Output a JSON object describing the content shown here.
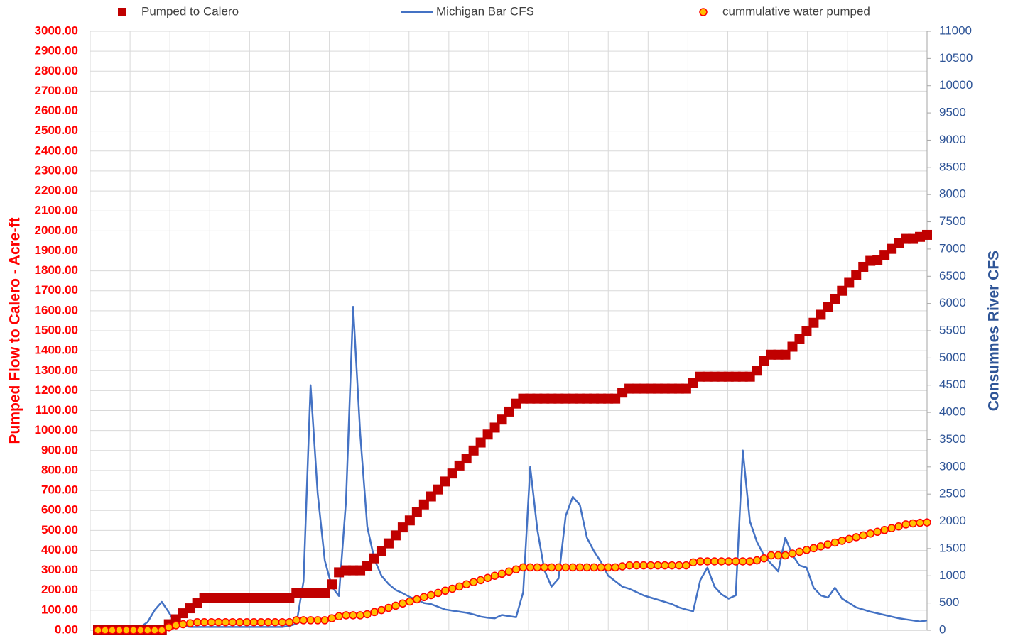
{
  "chart_data": {
    "type": "line",
    "ylabel": "Pumped Flow to Calero - Acre-ft",
    "y2label": "Consumnes River CFS",
    "ylim": [
      0,
      3000
    ],
    "yticks": [
      {
        "value": 0,
        "label": "0.00"
      },
      {
        "value": 100,
        "label": "100.00"
      },
      {
        "value": 200,
        "label": "200.00"
      },
      {
        "value": 300,
        "label": "300.00"
      },
      {
        "value": 400,
        "label": "400.00"
      },
      {
        "value": 500,
        "label": "500.00"
      },
      {
        "value": 600,
        "label": "600.00"
      },
      {
        "value": 700,
        "label": "700.00"
      },
      {
        "value": 800,
        "label": "800.00"
      },
      {
        "value": 900,
        "label": "900.00"
      },
      {
        "value": 1000,
        "label": "1000.00"
      },
      {
        "value": 1100,
        "label": "1100.00"
      },
      {
        "value": 1200,
        "label": "1200.00"
      },
      {
        "value": 1300,
        "label": "1300.00"
      },
      {
        "value": 1400,
        "label": "1400.00"
      },
      {
        "value": 1500,
        "label": "1500.00"
      },
      {
        "value": 1600,
        "label": "1600.00"
      },
      {
        "value": 1700,
        "label": "1700.00"
      },
      {
        "value": 1800,
        "label": "1800.00"
      },
      {
        "value": 1900,
        "label": "1900.00"
      },
      {
        "value": 2000,
        "label": "2000.00"
      },
      {
        "value": 2100,
        "label": "2100.00"
      },
      {
        "value": 2200,
        "label": "2200.00"
      },
      {
        "value": 2300,
        "label": "2300.00"
      },
      {
        "value": 2400,
        "label": "2400.00"
      },
      {
        "value": 2500,
        "label": "2500.00"
      },
      {
        "value": 2600,
        "label": "2600.00"
      },
      {
        "value": 2700,
        "label": "2700.00"
      },
      {
        "value": 2800,
        "label": "2800.00"
      },
      {
        "value": 2900,
        "label": "2900.00"
      },
      {
        "value": 3000,
        "label": "3000.00"
      }
    ],
    "y2lim": [
      0,
      11000
    ],
    "y2ticks": [
      0,
      500,
      1000,
      1500,
      2000,
      2500,
      3000,
      3500,
      4000,
      4500,
      5000,
      5500,
      6000,
      6500,
      7000,
      7500,
      8000,
      8500,
      9000,
      9500,
      10000,
      10500,
      11000
    ],
    "grid": true,
    "legend": "top",
    "categories": [
      null,
      null,
      null,
      null,
      null,
      null,
      null,
      null,
      null,
      null,
      null,
      null,
      null,
      null,
      null,
      null,
      null,
      null,
      null,
      null,
      null,
      null,
      null,
      null,
      null,
      null,
      null,
      null,
      null,
      null,
      null,
      null,
      null,
      null,
      null,
      null,
      null,
      null,
      null,
      null,
      null,
      null,
      null,
      null,
      null,
      null,
      null,
      null,
      null,
      null,
      null,
      null,
      null,
      null,
      null,
      null,
      null,
      null,
      null,
      null,
      null,
      null,
      null,
      null,
      null,
      null,
      null,
      null,
      null,
      null,
      null,
      null,
      null,
      null,
      null,
      null,
      null,
      null,
      null,
      null,
      null,
      null,
      null,
      null,
      null,
      null,
      null,
      null,
      null,
      null,
      null,
      null,
      null,
      null,
      null,
      null,
      null,
      null,
      null,
      null,
      null,
      null,
      null,
      null,
      null,
      null,
      null,
      null,
      null,
      null,
      null,
      null,
      null,
      null,
      null,
      null,
      null,
      null
    ],
    "series": [
      {
        "name": "Pumped to Calero",
        "marker": "square",
        "color": "#c00000",
        "values": [
          0,
          0,
          0,
          0,
          0,
          0,
          0,
          0,
          0,
          0,
          30,
          55,
          85,
          110,
          135,
          160,
          160,
          160,
          160,
          160,
          160,
          160,
          160,
          160,
          160,
          160,
          160,
          160,
          185,
          185,
          185,
          185,
          185,
          230,
          290,
          300,
          300,
          300,
          320,
          360,
          395,
          435,
          475,
          515,
          550,
          590,
          630,
          670,
          705,
          745,
          785,
          825,
          860,
          900,
          940,
          980,
          1015,
          1055,
          1095,
          1135,
          1160,
          1160,
          1160,
          1160,
          1160,
          1160,
          1160,
          1160,
          1160,
          1160,
          1160,
          1160,
          1160,
          1160,
          1190,
          1210,
          1210,
          1210,
          1210,
          1210,
          1210,
          1210,
          1210,
          1210,
          1240,
          1270,
          1270,
          1270,
          1270,
          1270,
          1270,
          1270,
          1270,
          1300,
          1350,
          1380,
          1380,
          1380,
          1420,
          1460,
          1500,
          1540,
          1580,
          1620,
          1660,
          1700,
          1740,
          1780,
          1820,
          1850,
          1855,
          1880,
          1910,
          1940,
          1960,
          1960,
          1970,
          1980
        ]
      },
      {
        "name": "Michigan Bar CFS",
        "marker": "line",
        "color": "#4472c4",
        "axis": "y2",
        "values": [
          60,
          60,
          60,
          60,
          60,
          60,
          60,
          150,
          370,
          520,
          330,
          110,
          80,
          60,
          60,
          60,
          60,
          60,
          60,
          60,
          60,
          60,
          60,
          60,
          60,
          60,
          60,
          80,
          120,
          900,
          4500,
          2510,
          1280,
          800,
          630,
          2380,
          5940,
          3600,
          1900,
          1300,
          1000,
          850,
          740,
          680,
          610,
          560,
          500,
          480,
          430,
          380,
          360,
          340,
          320,
          290,
          250,
          230,
          220,
          280,
          260,
          240,
          700,
          3000,
          1850,
          1100,
          800,
          950,
          2100,
          2450,
          2300,
          1700,
          1450,
          1250,
          1000,
          900,
          800,
          760,
          700,
          640,
          600,
          560,
          520,
          480,
          420,
          380,
          350,
          920,
          1150,
          800,
          660,
          580,
          640,
          3300,
          2000,
          1620,
          1370,
          1220,
          1080,
          1700,
          1380,
          1190,
          1150,
          780,
          640,
          600,
          780,
          580,
          500,
          420,
          380,
          340,
          310,
          280,
          250,
          220,
          200,
          180,
          160,
          180
        ]
      },
      {
        "name": "cummulative water pumped",
        "marker": "circle",
        "color": "#ffc000",
        "edgecolor": "#ff0000",
        "values": [
          0,
          0,
          0,
          0,
          0,
          0,
          0,
          0,
          0,
          0,
          15,
          25,
          30,
          35,
          40,
          40,
          40,
          40,
          40,
          40,
          40,
          40,
          40,
          40,
          40,
          40,
          40,
          40,
          50,
          50,
          50,
          50,
          50,
          60,
          70,
          75,
          75,
          75,
          80,
          91,
          101,
          112,
          123,
          134,
          144,
          155,
          166,
          176,
          187,
          198,
          208,
          219,
          230,
          241,
          251,
          262,
          273,
          283,
          294,
          305,
          315,
          315,
          315,
          315,
          315,
          315,
          315,
          315,
          315,
          315,
          315,
          315,
          315,
          315,
          320,
          325,
          325,
          325,
          325,
          325,
          325,
          325,
          325,
          325,
          340,
          345,
          345,
          345,
          345,
          345,
          345,
          345,
          345,
          350,
          360,
          375,
          375,
          375,
          384,
          393,
          402,
          411,
          420,
          430,
          439,
          448,
          457,
          466,
          475,
          484,
          493,
          502,
          511,
          520,
          530,
          535,
          538,
          540
        ]
      }
    ]
  }
}
